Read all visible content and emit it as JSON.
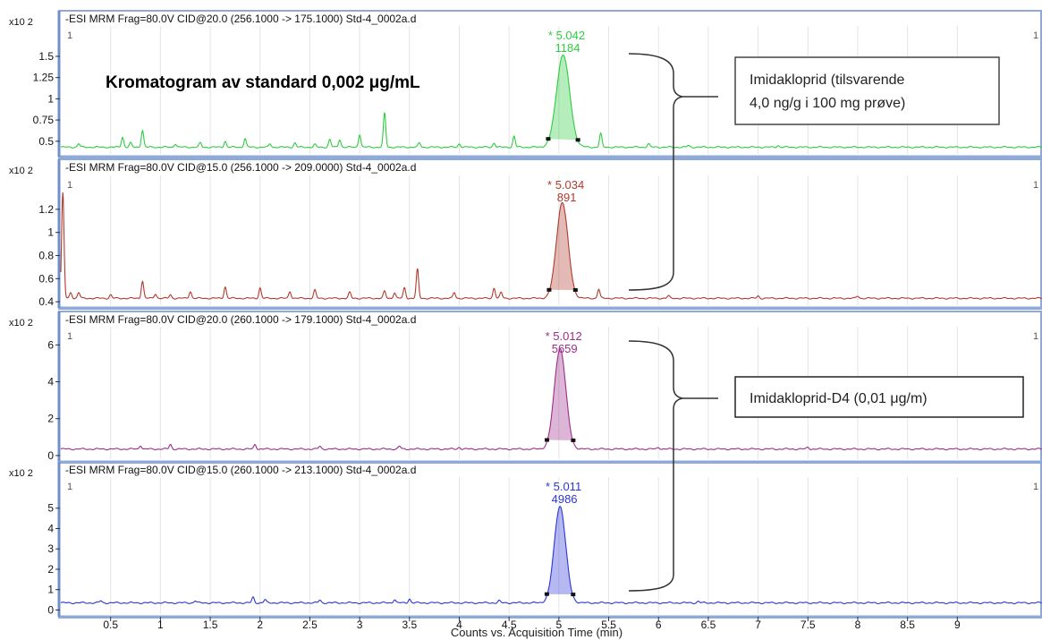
{
  "chart_data": [
    {
      "type": "line",
      "header": "-ESI  MRM  Frag=80.0V  CID@20.0  (256.1000  ->  175.1000)  Std-4_0002a.d",
      "scale_label": "x10 2",
      "corner_left": "1",
      "corner_right": "1",
      "color": "#2ecc40",
      "ylim": [
        0.35,
        1.7
      ],
      "yticks": [
        0.5,
        0.75,
        1,
        1.25,
        1.5
      ],
      "ytick_labels": [
        "0.5",
        "0.75",
        "1",
        "1.25",
        "1.5"
      ],
      "baseline": 0.43,
      "peak": {
        "rt": 5.042,
        "height": 1.52,
        "width": 0.17
      },
      "peak_label_rt": "* 5.042",
      "peak_label_area": "1184",
      "noise_peaks": [
        [
          0.18,
          0.47
        ],
        [
          0.62,
          0.55
        ],
        [
          0.7,
          0.48
        ],
        [
          0.82,
          0.63
        ],
        [
          1.15,
          0.47
        ],
        [
          1.4,
          0.48
        ],
        [
          1.65,
          0.5
        ],
        [
          1.85,
          0.53
        ],
        [
          2.1,
          0.47
        ],
        [
          2.35,
          0.48
        ],
        [
          2.55,
          0.46
        ],
        [
          2.7,
          0.52
        ],
        [
          2.8,
          0.52
        ],
        [
          3.0,
          0.58
        ],
        [
          3.25,
          0.83
        ],
        [
          3.6,
          0.48
        ],
        [
          4.0,
          0.47
        ],
        [
          4.35,
          0.48
        ],
        [
          4.55,
          0.56
        ],
        [
          5.42,
          0.59
        ],
        [
          5.9,
          0.47
        ],
        [
          6.3,
          0.45
        ],
        [
          7.2,
          0.45
        ]
      ]
    },
    {
      "type": "line",
      "header": "-ESI  MRM  Frag=80.0V  CID@15.0  (256.1000  ->  209.0000)  Std-4_0002a.d",
      "scale_label": "x10 2",
      "corner_left": "1",
      "corner_right": "1",
      "color": "#b03a2e",
      "ylim": [
        0.37,
        1.4
      ],
      "yticks": [
        0.4,
        0.6,
        0.8,
        1,
        1.2
      ],
      "ytick_labels": [
        "0.4",
        "0.6",
        "0.8",
        "1",
        "1.2"
      ],
      "baseline": 0.43,
      "peak": {
        "rt": 5.034,
        "height": 1.26,
        "width": 0.15
      },
      "peak_label_rt": "* 5.034",
      "peak_label_area": "891",
      "noise_peaks": [
        [
          0.02,
          1.34
        ],
        [
          0.1,
          0.48
        ],
        [
          0.18,
          0.48
        ],
        [
          0.5,
          0.46
        ],
        [
          0.82,
          0.58
        ],
        [
          0.95,
          0.47
        ],
        [
          1.1,
          0.46
        ],
        [
          1.3,
          0.49
        ],
        [
          1.65,
          0.53
        ],
        [
          2.0,
          0.52
        ],
        [
          2.3,
          0.49
        ],
        [
          2.55,
          0.5
        ],
        [
          2.9,
          0.48
        ],
        [
          3.25,
          0.49
        ],
        [
          3.35,
          0.48
        ],
        [
          3.45,
          0.52
        ],
        [
          3.58,
          0.68
        ],
        [
          3.95,
          0.48
        ],
        [
          4.35,
          0.52
        ],
        [
          4.42,
          0.48
        ],
        [
          5.4,
          0.51
        ],
        [
          6.1,
          0.45
        ],
        [
          7.0,
          0.45
        ],
        [
          8.0,
          0.45
        ]
      ]
    },
    {
      "type": "line",
      "header": "-ESI  MRM  Frag=80.0V  CID@20.0  (260.1000  ->  179.1000)  Std-4_0002a.d",
      "scale_label": "x10 2",
      "corner_left": "1",
      "corner_right": "1",
      "color": "#9b2c8c",
      "ylim": [
        -0.2,
        6.5
      ],
      "yticks": [
        0,
        2,
        4,
        6
      ],
      "ytick_labels": [
        "0",
        "2",
        "4",
        "6"
      ],
      "baseline": 0.35,
      "peak": {
        "rt": 5.012,
        "height": 5.8,
        "width": 0.15
      },
      "peak_label_rt": "* 5.012",
      "peak_label_area": "5659",
      "noise_peaks": [
        [
          0.8,
          0.55
        ],
        [
          1.1,
          0.6
        ],
        [
          1.95,
          0.6
        ],
        [
          2.6,
          0.5
        ],
        [
          3.4,
          0.5
        ],
        [
          4.0,
          0.45
        ],
        [
          6.0,
          0.45
        ],
        [
          7.5,
          0.45
        ]
      ]
    },
    {
      "type": "line",
      "header": "-ESI  MRM  Frag=80.0V  CID@15.0  (260.1000  ->  213.1000)  Std-4_0002a.d",
      "scale_label": "x10 2",
      "corner_left": "1",
      "corner_right": "1",
      "color": "#2b35d6",
      "ylim": [
        -0.2,
        6.0
      ],
      "yticks": [
        0,
        1,
        2,
        3,
        4,
        5
      ],
      "ytick_labels": [
        "0",
        "1",
        "2",
        "3",
        "4",
        "5"
      ],
      "baseline": 0.35,
      "peak": {
        "rt": 5.011,
        "height": 5.1,
        "width": 0.15
      },
      "peak_label_rt": "* 5.011",
      "peak_label_area": "4986",
      "noise_peaks": [
        [
          0.4,
          0.45
        ],
        [
          1.35,
          0.45
        ],
        [
          1.93,
          0.62
        ],
        [
          2.05,
          0.5
        ],
        [
          2.6,
          0.48
        ],
        [
          3.35,
          0.52
        ],
        [
          3.5,
          0.55
        ],
        [
          4.4,
          0.45
        ],
        [
          6.4,
          0.42
        ]
      ]
    }
  ],
  "x_axis": {
    "xlim": [
      0,
      9.85
    ],
    "ticks": [
      0.5,
      1,
      1.5,
      2,
      2.5,
      3,
      3.5,
      4,
      4.5,
      5,
      5.5,
      6,
      6.5,
      7,
      7.5,
      8,
      8.5,
      9
    ],
    "tick_labels": [
      "0.5",
      "1",
      "1.5",
      "2",
      "2.5",
      "3",
      "3.5",
      "4",
      "4.5",
      "5",
      "5.5",
      "6",
      "6.5",
      "7",
      "7.5",
      "8",
      "8.5",
      "9"
    ],
    "label": "Counts vs. Acquisition Time (min)"
  },
  "annotations": {
    "title": "Kromatogram av standard  0,002 μg/mL",
    "imidakloprid_line1": "Imidakloprid (tilsvarende",
    "imidakloprid_line2": "4,0 ng/g i 100 mg prøve)",
    "imidakloprid_d4": "Imidakloprid-D4 (0,01 μg/m)"
  }
}
